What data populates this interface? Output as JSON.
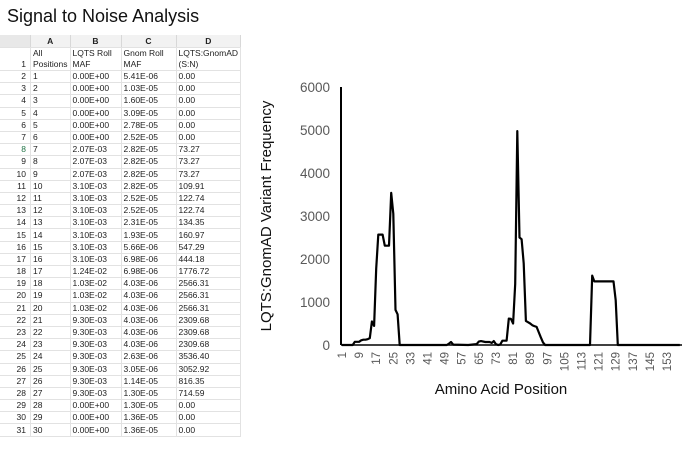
{
  "title": "Signal to Noise Analysis",
  "sheet": {
    "columns": [
      "A",
      "B",
      "C",
      "D"
    ],
    "header_row": {
      "row": "1",
      "cells": [
        "All\nPositions",
        "LQTS Roll\nMAF",
        "Gnom Roll\nMAF",
        "LQTS:GnomAD\n(S:N)"
      ]
    },
    "selected_row": "8",
    "rows": [
      [
        "2",
        "1",
        "0.00E+00",
        "5.41E-06",
        "0.00"
      ],
      [
        "3",
        "2",
        "0.00E+00",
        "1.03E-05",
        "0.00"
      ],
      [
        "4",
        "3",
        "0.00E+00",
        "1.60E-05",
        "0.00"
      ],
      [
        "5",
        "4",
        "0.00E+00",
        "3.09E-05",
        "0.00"
      ],
      [
        "6",
        "5",
        "0.00E+00",
        "2.78E-05",
        "0.00"
      ],
      [
        "7",
        "6",
        "0.00E+00",
        "2.52E-05",
        "0.00"
      ],
      [
        "8",
        "7",
        "2.07E-03",
        "2.82E-05",
        "73.27"
      ],
      [
        "9",
        "8",
        "2.07E-03",
        "2.82E-05",
        "73.27"
      ],
      [
        "10",
        "9",
        "2.07E-03",
        "2.82E-05",
        "73.27"
      ],
      [
        "11",
        "10",
        "3.10E-03",
        "2.82E-05",
        "109.91"
      ],
      [
        "12",
        "11",
        "3.10E-03",
        "2.52E-05",
        "122.74"
      ],
      [
        "13",
        "12",
        "3.10E-03",
        "2.52E-05",
        "122.74"
      ],
      [
        "14",
        "13",
        "3.10E-03",
        "2.31E-05",
        "134.35"
      ],
      [
        "15",
        "14",
        "3.10E-03",
        "1.93E-05",
        "160.97"
      ],
      [
        "16",
        "15",
        "3.10E-03",
        "5.66E-06",
        "547.29"
      ],
      [
        "17",
        "16",
        "3.10E-03",
        "6.98E-06",
        "444.18"
      ],
      [
        "18",
        "17",
        "1.24E-02",
        "6.98E-06",
        "1776.72"
      ],
      [
        "19",
        "18",
        "1.03E-02",
        "4.03E-06",
        "2566.31"
      ],
      [
        "20",
        "19",
        "1.03E-02",
        "4.03E-06",
        "2566.31"
      ],
      [
        "21",
        "20",
        "1.03E-02",
        "4.03E-06",
        "2566.31"
      ],
      [
        "22",
        "21",
        "9.30E-03",
        "4.03E-06",
        "2309.68"
      ],
      [
        "23",
        "22",
        "9.30E-03",
        "4.03E-06",
        "2309.68"
      ],
      [
        "24",
        "23",
        "9.30E-03",
        "4.03E-06",
        "2309.68"
      ],
      [
        "25",
        "24",
        "9.30E-03",
        "2.63E-06",
        "3536.40"
      ],
      [
        "26",
        "25",
        "9.30E-03",
        "3.05E-06",
        "3052.92"
      ],
      [
        "27",
        "26",
        "9.30E-03",
        "1.14E-05",
        "816.35"
      ],
      [
        "28",
        "27",
        "9.30E-03",
        "1.30E-05",
        "714.59"
      ],
      [
        "29",
        "28",
        "0.00E+00",
        "1.30E-05",
        "0.00"
      ],
      [
        "30",
        "29",
        "0.00E+00",
        "1.36E-05",
        "0.00"
      ],
      [
        "31",
        "30",
        "0.00E+00",
        "1.36E-05",
        "0.00"
      ]
    ]
  },
  "chart_data": {
    "type": "line",
    "title": "",
    "xlabel": "Amino Acid Position",
    "ylabel": "LQTS:GnomAD Variant Frequency",
    "xlim": [
      1,
      159
    ],
    "ylim": [
      0,
      6000
    ],
    "yticks": [
      0,
      1000,
      2000,
      3000,
      4000,
      5000,
      6000
    ],
    "xticks": [
      "1",
      "9",
      "17",
      "25",
      "33",
      "41",
      "49",
      "57",
      "65",
      "73",
      "81",
      "89",
      "97",
      "105",
      "113",
      "121",
      "129",
      "137",
      "145",
      "153"
    ],
    "grid": false,
    "series": [
      {
        "name": "LQTS:GnomAD (S:N)",
        "x": [
          1,
          2,
          3,
          4,
          5,
          6,
          7,
          8,
          9,
          10,
          11,
          12,
          13,
          14,
          15,
          16,
          17,
          18,
          19,
          20,
          21,
          22,
          23,
          24,
          25,
          26,
          27,
          28,
          29,
          30,
          50,
          51,
          52,
          53,
          60,
          64,
          65,
          66,
          68,
          70,
          71,
          72,
          73,
          74,
          75,
          76,
          77,
          78,
          79,
          80,
          81,
          82,
          83,
          84,
          85,
          86,
          87,
          88,
          89,
          90,
          91,
          92,
          93,
          94,
          95,
          96,
          97,
          117,
          118,
          119,
          120,
          124,
          127,
          128,
          129,
          130,
          159
        ],
        "y": [
          0,
          0,
          0,
          0,
          0,
          0,
          73.27,
          73.27,
          73.27,
          109.91,
          122.74,
          122.74,
          134.35,
          160.97,
          547.29,
          444.18,
          1776.72,
          2566.31,
          2566.31,
          2566.31,
          2309.68,
          2309.68,
          2309.68,
          3536.4,
          3052.92,
          816.35,
          714.59,
          0,
          0,
          0,
          0,
          30,
          70,
          10,
          0,
          20,
          80,
          90,
          70,
          70,
          50,
          90,
          20,
          0,
          10,
          100,
          100,
          100,
          615,
          610,
          500,
          1420,
          4975,
          2500,
          2460,
          1900,
          560,
          530,
          500,
          460,
          440,
          420,
          300,
          180,
          60,
          0,
          0,
          0,
          1615,
          1480,
          1480,
          1480,
          1480,
          1480,
          1040,
          0,
          0
        ]
      }
    ]
  }
}
